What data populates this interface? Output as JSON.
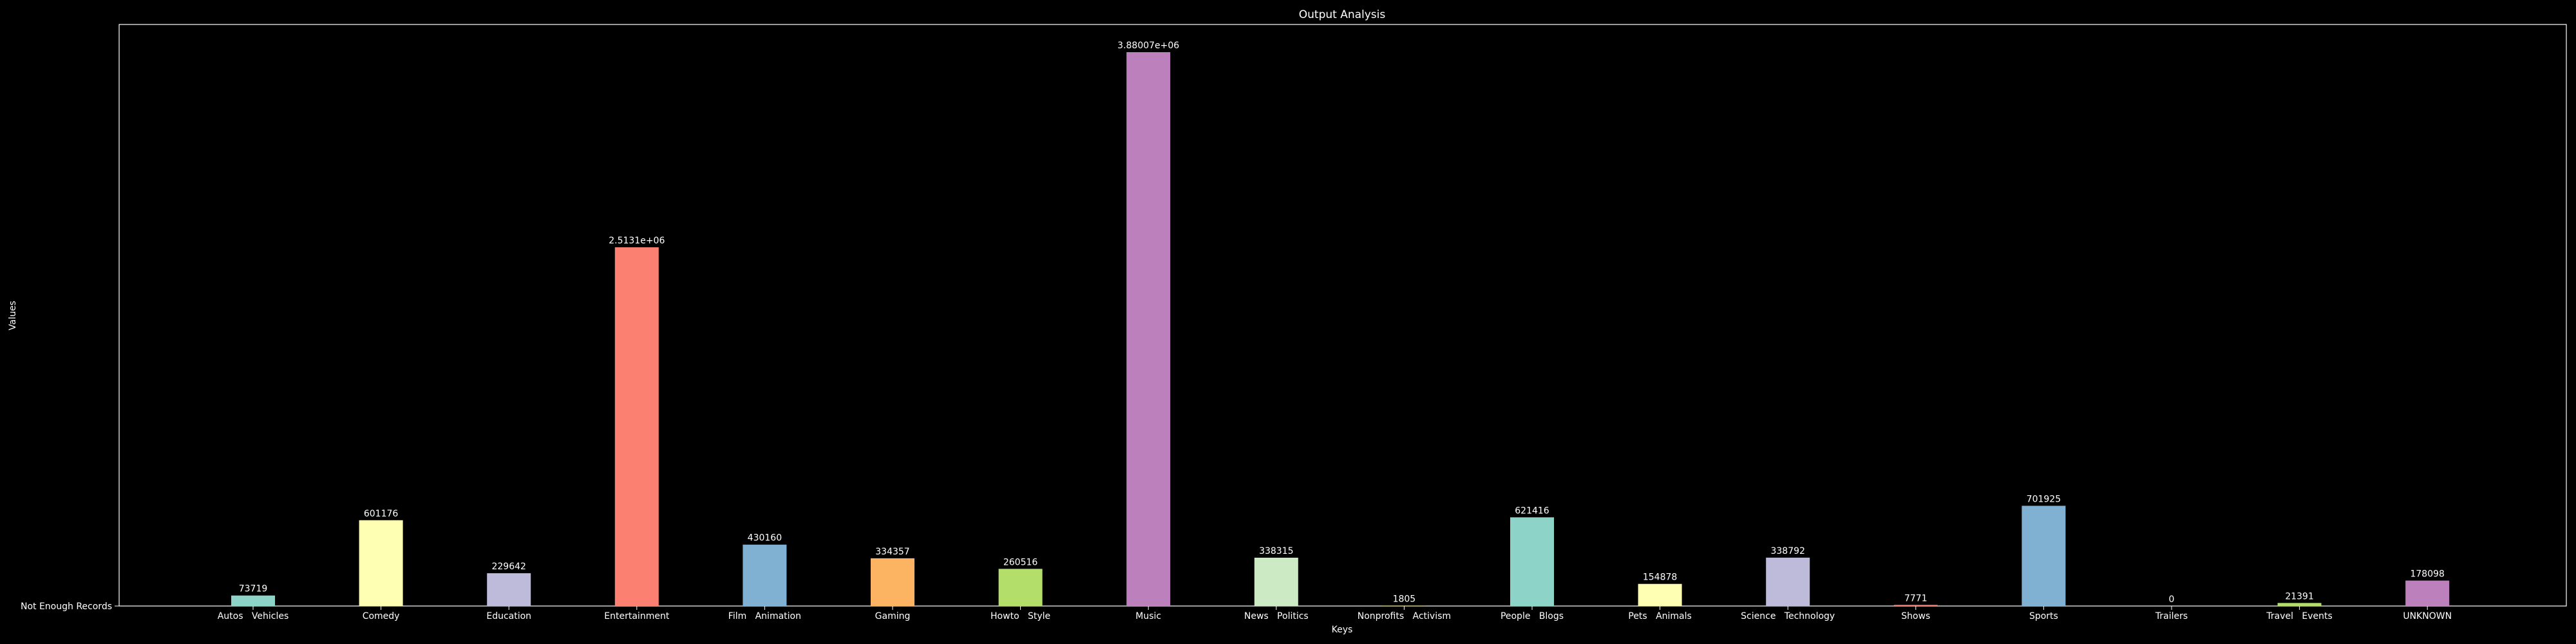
{
  "chart_data": {
    "type": "bar",
    "title": "Output Analysis",
    "xlabel": "Keys",
    "ylabel": "Values",
    "ytick_label": "Not Enough Records",
    "categories": [
      "Autos   Vehicles",
      "Comedy",
      "Education",
      "Entertainment",
      "Film   Animation",
      "Gaming",
      "Howto   Style",
      "Music",
      "News   Politics",
      "Nonprofits   Activism",
      "People   Blogs",
      "Pets   Animals",
      "Science   Technology",
      "Shows",
      "Sports",
      "Trailers",
      "Travel   Events",
      "UNKNOWN"
    ],
    "values": [
      73719,
      601176,
      229642,
      2513100,
      430160,
      334357,
      260516,
      3880070,
      338315,
      1805,
      621416,
      154878,
      338792,
      7771,
      701925,
      0,
      21391,
      178098
    ],
    "value_labels": [
      "73719",
      "601176",
      "229642",
      "2.5131e+06",
      "430160",
      "334357",
      "260516",
      "3.88007e+06",
      "338315",
      "1805",
      "621416",
      "154878",
      "338792",
      "7771",
      "701925",
      "0",
      "21391",
      "178098"
    ],
    "colors": [
      "#8dd3c7",
      "#ffffb3",
      "#bebada",
      "#fb8072",
      "#80b1d3",
      "#fdb462",
      "#b3de69",
      "#bc80bd",
      "#ccebc5",
      "#ffed6f",
      "#8dd3c7",
      "#ffffb3",
      "#bebada",
      "#fb8072",
      "#80b1d3",
      "#fdb462",
      "#b3de69",
      "#bc80bd"
    ],
    "ylim": [
      0,
      4074073
    ],
    "grid": false,
    "legend": "none",
    "background": "#000000",
    "foreground": "#ffffff"
  }
}
